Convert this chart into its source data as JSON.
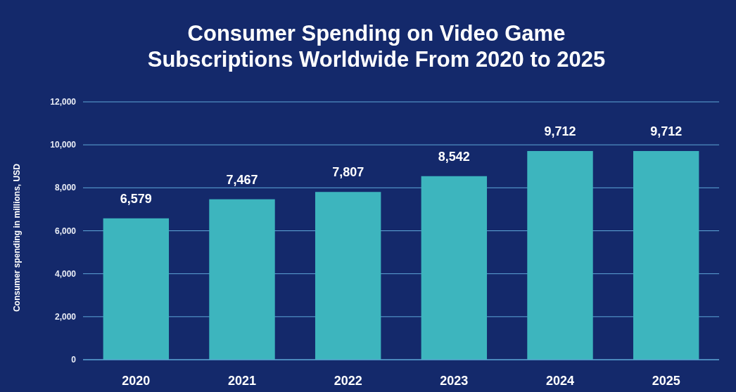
{
  "chart_data": {
    "type": "bar",
    "title": "Consumer Spending on Video Game\nSubscriptions Worldwide From 2020 to 2025",
    "ylabel": "Consumer spending in millions, USD",
    "categories": [
      "2020",
      "2021",
      "2022",
      "2023",
      "2024",
      "2025"
    ],
    "values": [
      6579,
      7467,
      7807,
      8542,
      9712,
      9712
    ],
    "color": "#3db5be",
    "ylim": [
      0,
      12000
    ],
    "yticks": [
      {
        "value": 0,
        "label": "0"
      },
      {
        "value": 2000,
        "label": "2,000"
      },
      {
        "value": 4000,
        "label": "4,000"
      },
      {
        "value": 6000,
        "label": "6,000"
      },
      {
        "value": 8000,
        "label": "8,000"
      },
      {
        "value": 10000,
        "label": "10,000"
      },
      {
        "value": 12000,
        "label": "12,000"
      }
    ],
    "grid": "y",
    "value_labels": [
      "6,579",
      "7,467",
      "7,807",
      "8,542",
      "9,712",
      "9,712"
    ]
  }
}
